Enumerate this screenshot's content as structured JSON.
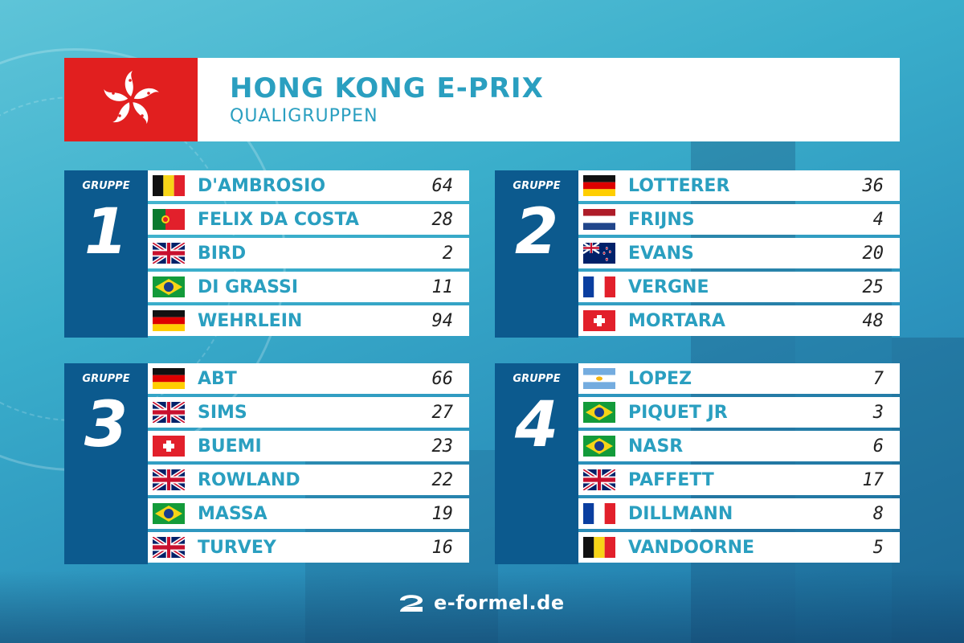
{
  "header": {
    "title": "HONG KONG E-PRIX",
    "subtitle": "QUALIGRUPPEN",
    "flag_icon": "hong-kong-flag-icon",
    "flag_color": "#e11f1f"
  },
  "groups": [
    {
      "caption": "GRUPPE",
      "number": "1",
      "drivers": [
        {
          "flag": "belgium",
          "name": "D'AMBROSIO",
          "number": "64"
        },
        {
          "flag": "portugal",
          "name": "FELIX DA COSTA",
          "number": "28"
        },
        {
          "flag": "uk",
          "name": "BIRD",
          "number": "2"
        },
        {
          "flag": "brazil",
          "name": "DI GRASSI",
          "number": "11"
        },
        {
          "flag": "germany",
          "name": "WEHRLEIN",
          "number": "94"
        }
      ]
    },
    {
      "caption": "GRUPPE",
      "number": "2",
      "drivers": [
        {
          "flag": "germany",
          "name": "LOTTERER",
          "number": "36"
        },
        {
          "flag": "netherlands",
          "name": "FRIJNS",
          "number": "4"
        },
        {
          "flag": "new-zealand",
          "name": "EVANS",
          "number": "20"
        },
        {
          "flag": "france",
          "name": "VERGNE",
          "number": "25"
        },
        {
          "flag": "switzerland",
          "name": "MORTARA",
          "number": "48"
        }
      ]
    },
    {
      "caption": "GRUPPE",
      "number": "3",
      "drivers": [
        {
          "flag": "germany",
          "name": "ABT",
          "number": "66"
        },
        {
          "flag": "uk",
          "name": "SIMS",
          "number": "27"
        },
        {
          "flag": "switzerland",
          "name": "BUEMI",
          "number": "23"
        },
        {
          "flag": "uk",
          "name": "ROWLAND",
          "number": "22"
        },
        {
          "flag": "brazil",
          "name": "MASSA",
          "number": "19"
        },
        {
          "flag": "uk",
          "name": "TURVEY",
          "number": "16"
        }
      ]
    },
    {
      "caption": "GRUPPE",
      "number": "4",
      "drivers": [
        {
          "flag": "argentina",
          "name": "LOPEZ",
          "number": "7"
        },
        {
          "flag": "brazil",
          "name": "PIQUET JR",
          "number": "3"
        },
        {
          "flag": "brazil",
          "name": "NASR",
          "number": "6"
        },
        {
          "flag": "uk",
          "name": "PAFFETT",
          "number": "17"
        },
        {
          "flag": "france",
          "name": "DILLMANN",
          "number": "8"
        },
        {
          "flag": "belgium",
          "name": "VANDOORNE",
          "number": "5"
        }
      ]
    }
  ],
  "footer": {
    "logo_icon": "e-formel-logo-icon",
    "brand": "e-formel.de"
  },
  "colors": {
    "accent": "#2a9fc0",
    "group_panel": "#0c5a8e"
  }
}
